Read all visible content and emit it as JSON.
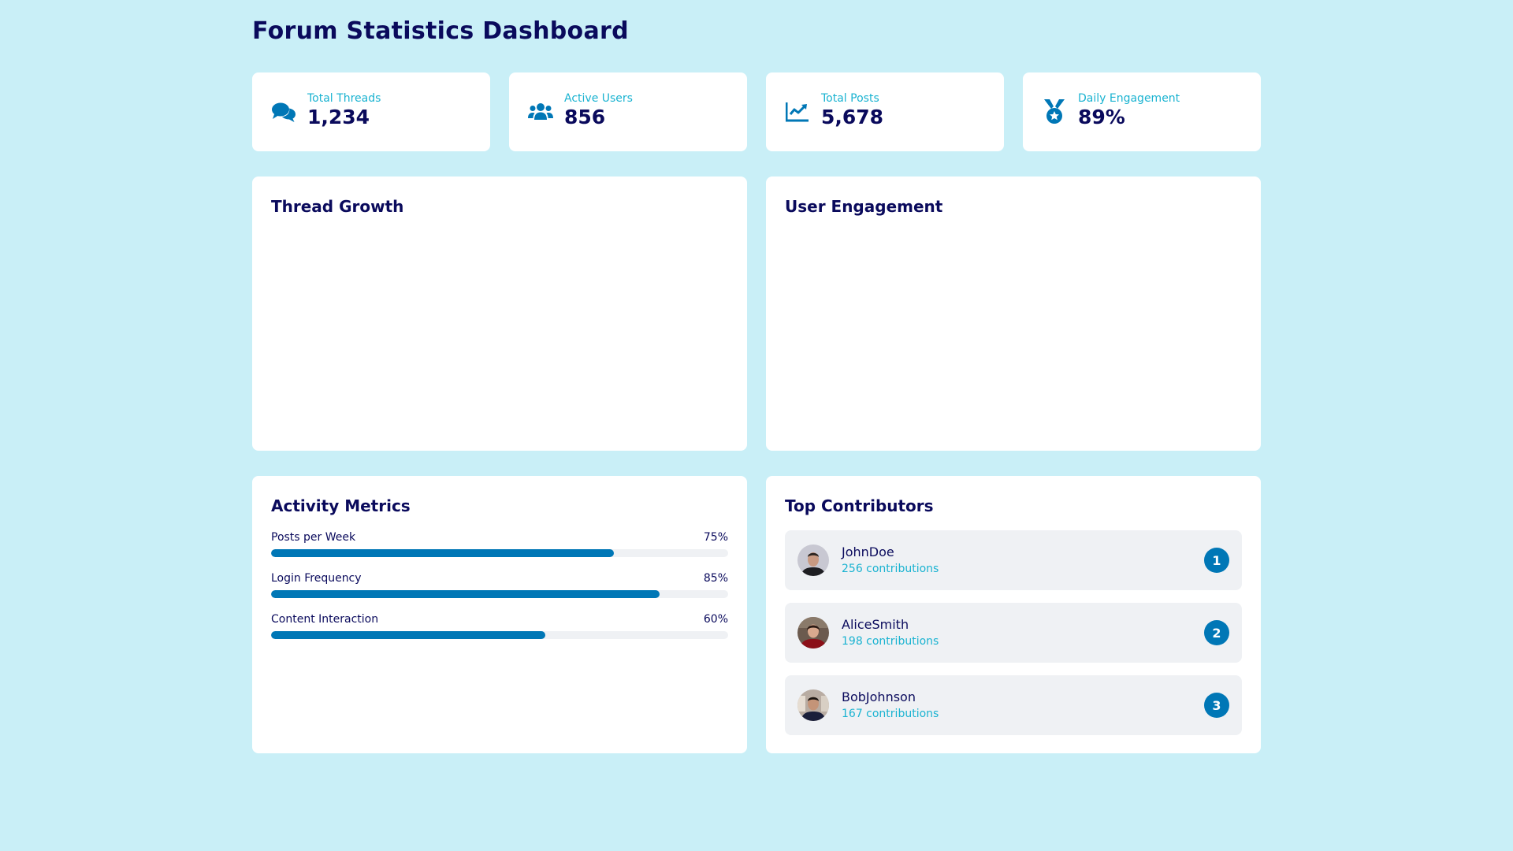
{
  "page": {
    "title": "Forum Statistics Dashboard"
  },
  "colors": {
    "background": "#c9eff7",
    "primary": "#0077b6",
    "accent": "#1ab3d1",
    "text_dark": "#0a0a5c",
    "track": "#eff1f4"
  },
  "stats": [
    {
      "icon": "comments-icon",
      "label": "Total Threads",
      "value": "1,234"
    },
    {
      "icon": "users-icon",
      "label": "Active Users",
      "value": "856"
    },
    {
      "icon": "chart-line-icon",
      "label": "Total Posts",
      "value": "5,678"
    },
    {
      "icon": "medal-icon",
      "label": "Daily Engagement",
      "value": "89%"
    }
  ],
  "charts": {
    "thread_growth": {
      "title": "Thread Growth"
    },
    "user_engagement": {
      "title": "User Engagement"
    }
  },
  "activity": {
    "title": "Activity Metrics",
    "metrics": [
      {
        "label": "Posts per Week",
        "value_text": "75%",
        "percent": 75
      },
      {
        "label": "Login Frequency",
        "value_text": "85%",
        "percent": 85
      },
      {
        "label": "Content Interaction",
        "value_text": "60%",
        "percent": 60
      }
    ]
  },
  "contributors": {
    "title": "Top Contributors",
    "items": [
      {
        "name": "JohnDoe",
        "contributions": "256 contributions",
        "rank": "1"
      },
      {
        "name": "AliceSmith",
        "contributions": "198 contributions",
        "rank": "2"
      },
      {
        "name": "BobJohnson",
        "contributions": "167 contributions",
        "rank": "3"
      }
    ]
  }
}
